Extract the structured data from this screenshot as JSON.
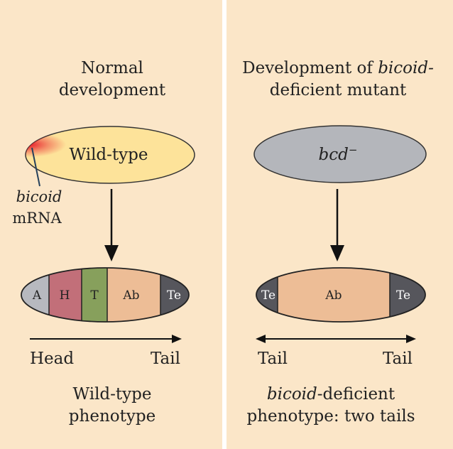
{
  "colors": {
    "panel_bg": "#fbe6c8",
    "divider": "#ffffff",
    "wildtype_egg": "#fde39a",
    "mutant_egg": "#b4b6bb",
    "mrna_gradient": "#e8202a",
    "seg_A": "#b7b9bf",
    "seg_H": "#c26f79",
    "seg_T": "#87a05c",
    "seg_Ab": "#edbd96",
    "seg_Te": "#56565c",
    "outline": "#222222"
  },
  "left": {
    "title_line1": "Normal",
    "title_line2": "development",
    "egg_label": "Wild-type",
    "mrna_label_italic": "bicoid",
    "mrna_label": "mRNA",
    "segments": [
      {
        "key": "A",
        "label": "A"
      },
      {
        "key": "H",
        "label": "H"
      },
      {
        "key": "T",
        "label": "T"
      },
      {
        "key": "Ab",
        "label": "Ab"
      },
      {
        "key": "Te",
        "label": "Te"
      }
    ],
    "axis_left": "Head",
    "axis_right": "Tail",
    "phenotype_line1": "Wild-type",
    "phenotype_line2": "phenotype"
  },
  "right": {
    "title_line1_prefix": "Development of ",
    "title_line1_italic": "bicoid",
    "title_line1_suffix": "-",
    "title_line2": "deficient mutant",
    "egg_label": "bcd",
    "egg_label_sup": "−",
    "segments": [
      {
        "key": "Te",
        "label": "Te"
      },
      {
        "key": "Ab",
        "label": "Ab"
      },
      {
        "key": "Te",
        "label": "Te"
      }
    ],
    "axis_left": "Tail",
    "axis_right": "Tail",
    "phenotype_line1_italic": "bicoid",
    "phenotype_line1_suffix": "-deficient",
    "phenotype_line2": "phenotype: two tails"
  }
}
